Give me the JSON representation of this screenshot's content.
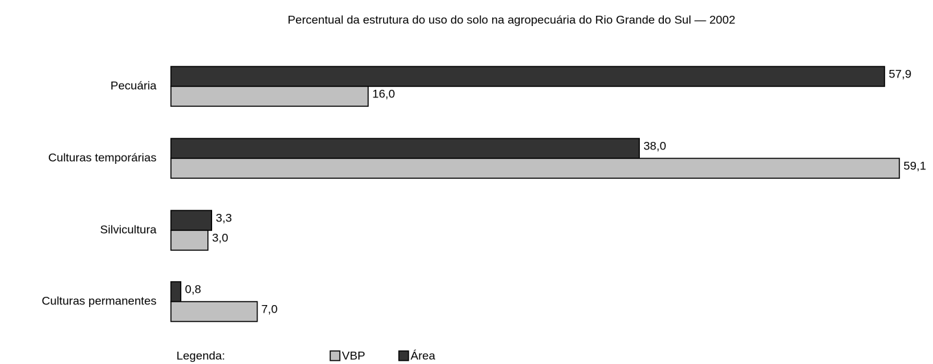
{
  "chart_data": {
    "type": "barh",
    "title": "Percentual da estrutura do uso do solo na agropecuária do Rio Grande do Sul  — 2002",
    "categories": [
      "Pecuária",
      "Culturas temporárias",
      "Silvicultura",
      "Culturas permanentes"
    ],
    "series": [
      {
        "name": "Área",
        "color": "#333333",
        "values": [
          57.9,
          38.0,
          3.3,
          0.8
        ],
        "value_labels": [
          "57,9",
          "38,0",
          "3,3",
          "0,8"
        ]
      },
      {
        "name": "VBP",
        "color": "#c0c0c0",
        "values": [
          16.0,
          59.1,
          3.0,
          7.0
        ],
        "value_labels": [
          "16,0",
          "59,1",
          "3,0",
          "7,0"
        ]
      }
    ],
    "legend_title": "Legenda:",
    "legend_order": [
      "VBP",
      "Área"
    ]
  }
}
